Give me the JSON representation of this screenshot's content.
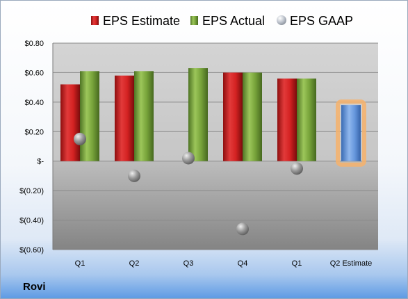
{
  "company": "Rovi",
  "chart_data": {
    "type": "bar",
    "title": "",
    "xlabel": "",
    "ylabel": "",
    "categories": [
      "Q1",
      "Q2",
      "Q3",
      "Q4",
      "Q1",
      "Q2 Estimate"
    ],
    "series": [
      {
        "name": "EPS Estimate",
        "kind": "bar",
        "color": "#d42222",
        "values": [
          0.52,
          0.58,
          null,
          0.6,
          0.56,
          null
        ]
      },
      {
        "name": "EPS Actual",
        "kind": "bar",
        "color": "#77a33a",
        "values": [
          0.61,
          0.61,
          0.63,
          0.6,
          0.56,
          null
        ]
      },
      {
        "name": "EPS GAAP",
        "kind": "marker",
        "color": "#a8a8a8",
        "values": [
          0.15,
          -0.1,
          0.02,
          -0.46,
          -0.05,
          null
        ]
      },
      {
        "name": "",
        "kind": "bar",
        "color": "#5b8fd6",
        "highlight": "#f6b26b",
        "values": [
          null,
          null,
          null,
          null,
          null,
          0.38
        ]
      }
    ],
    "ylim": [
      -0.6,
      0.8
    ],
    "yticks": [
      0.8,
      0.6,
      0.4,
      0.2,
      0,
      -0.2,
      -0.4,
      -0.6
    ],
    "ytick_labels": [
      "$0.80",
      "$0.60",
      "$0.40",
      "$0.20",
      "$-",
      "$(0.20)",
      "$(0.40)",
      "$(0.60)"
    ],
    "grid": true,
    "legend": "top"
  }
}
